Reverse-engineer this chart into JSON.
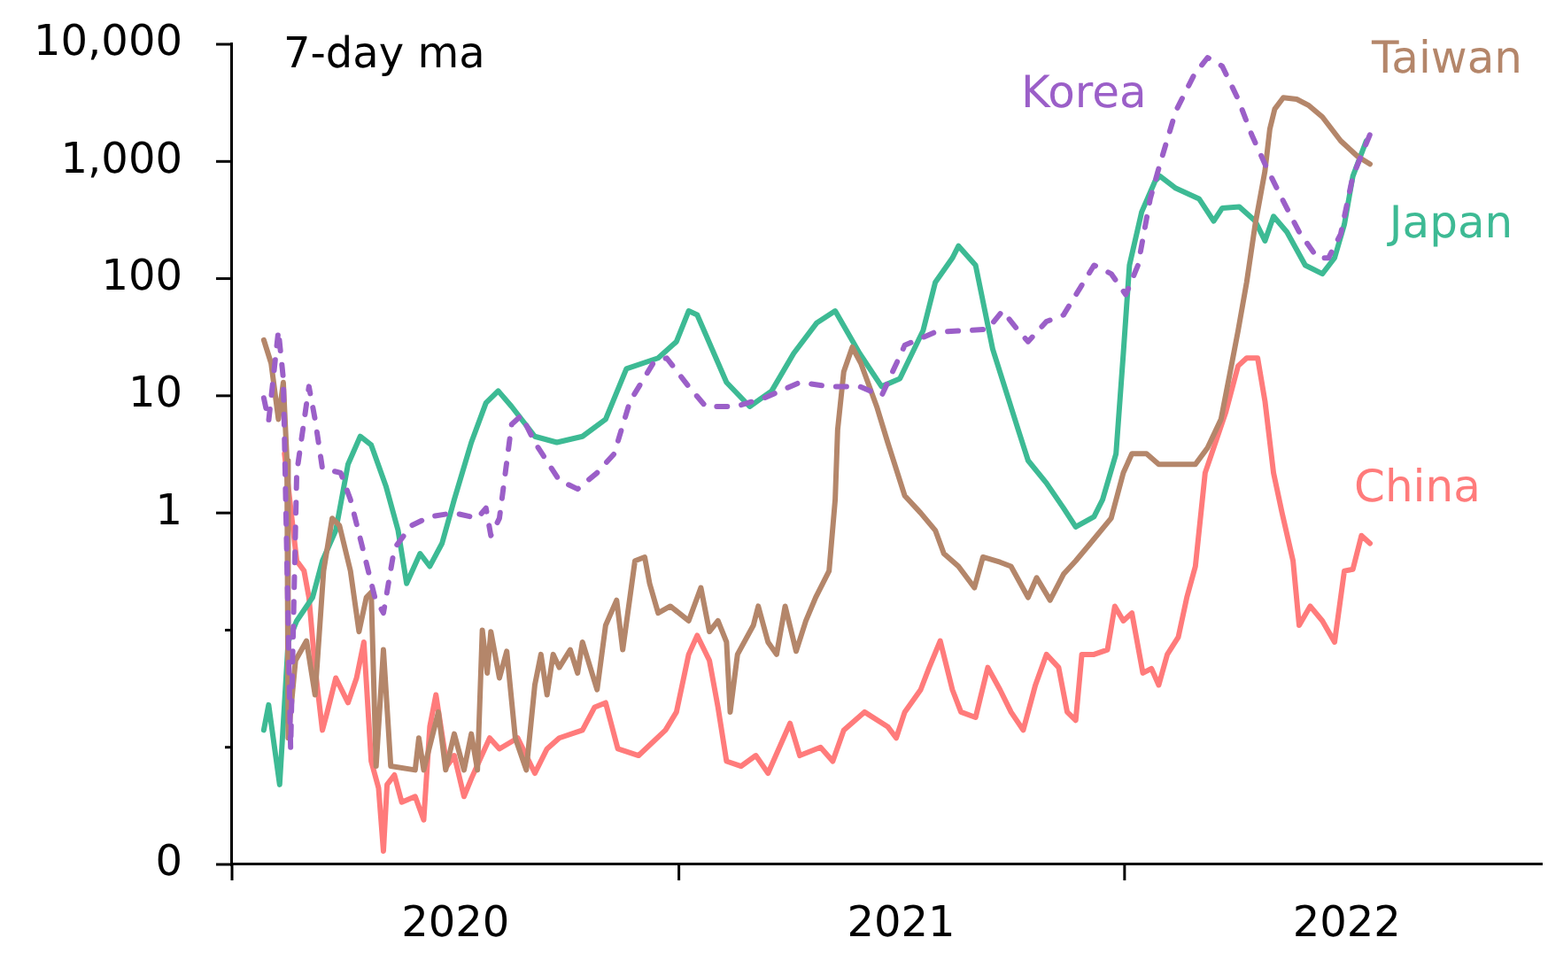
{
  "chart_data": {
    "type": "line",
    "log": true,
    "legend": false,
    "marker": "none",
    "line_style": "solid",
    "annotations": [
      "7-day ma"
    ],
    "xlim": [
      "2020-01-01",
      "2022-12-08"
    ],
    "xticks": [
      {
        "value": "2020-01-01",
        "label": null
      },
      {
        "value": "2020-07-02",
        "label": "2020"
      },
      {
        "value": "2021-01-01",
        "label": null
      },
      {
        "value": "2021-07-02",
        "label": "2021"
      },
      {
        "value": "2022-01-01",
        "label": null
      },
      {
        "value": "2022-07-02",
        "label": "2022"
      }
    ],
    "ylim": [
      0.001,
      10000
    ],
    "yticks": [
      {
        "value": 0.001,
        "label": "0"
      },
      {
        "value": 0.01,
        "label": null
      },
      {
        "value": 0.1,
        "label": null
      },
      1,
      10,
      100,
      {
        "value": 1000,
        "label": "1,000"
      },
      {
        "value": 10000,
        "label": "10,000"
      }
    ],
    "series": [
      {
        "name": "Korea",
        "color": "#9b5fc8",
        "line_style": "dashed",
        "x": [
          "2020-01-27",
          "2020-01-31",
          "2020-02-08",
          "2020-02-12",
          "2020-02-18",
          "2020-02-23",
          "2020-03-04",
          "2020-03-09",
          "2020-03-15",
          "2020-03-30",
          "2020-04-07",
          "2020-04-17",
          "2020-04-27",
          "2020-05-04",
          "2020-05-13",
          "2020-05-27",
          "2020-06-11",
          "2020-07-01",
          "2020-07-20",
          "2020-07-27",
          "2020-07-31",
          "2020-08-07",
          "2020-08-17",
          "2020-08-25",
          "2020-09-05",
          "2020-09-25",
          "2020-10-10",
          "2020-10-26",
          "2020-11-09",
          "2020-11-22",
          "2020-12-11",
          "2020-12-22",
          "2021-01-09",
          "2021-01-23",
          "2021-02-17",
          "2021-03-12",
          "2021-04-10",
          "2021-05-04",
          "2021-05-29",
          "2021-06-16",
          "2021-07-05",
          "2021-07-30",
          "2021-08-23",
          "2021-09-11",
          "2021-09-23",
          "2021-10-07",
          "2021-10-14",
          "2021-10-29",
          "2021-11-12",
          "2021-12-07",
          "2021-12-21",
          "2022-01-02",
          "2022-01-12",
          "2022-01-22",
          "2022-01-30",
          "2022-02-12",
          "2022-02-27",
          "2022-03-10",
          "2022-03-22",
          "2022-04-04",
          "2022-04-15",
          "2022-04-26",
          "2022-05-10",
          "2022-05-24",
          "2022-06-08",
          "2022-06-17",
          "2022-06-27",
          "2022-07-07",
          "2022-07-21"
        ],
        "values": [
          9.6,
          6.1,
          36,
          14,
          0.0097,
          2.2,
          12,
          6.3,
          2.4,
          2.2,
          1.3,
          0.5,
          0.19,
          0.14,
          0.5,
          0.78,
          0.93,
          1,
          0.9,
          1.1,
          0.64,
          0.9,
          5.7,
          6.8,
          4,
          1.9,
          1.6,
          2.2,
          3.2,
          9,
          19,
          21,
          12,
          8.1,
          8.1,
          9.6,
          13,
          12,
          12,
          10,
          27,
          35,
          36,
          37,
          53,
          35,
          29,
          43,
          49,
          130,
          110,
          73,
          130,
          480,
          950,
          2700,
          5500,
          7700,
          6500,
          3400,
          1700,
          950,
          480,
          250,
          150,
          150,
          240,
          750,
          1700
        ]
      },
      {
        "name": "Taiwan",
        "color": "#b4866a",
        "x": [
          "2020-01-27",
          "2020-02-02",
          "2020-02-08",
          "2020-02-12",
          "2020-02-15",
          "2020-02-16",
          "2020-02-22",
          "2020-03-02",
          "2020-03-09",
          "2020-03-16",
          "2020-03-23",
          "2020-03-29",
          "2020-04-07",
          "2020-04-14",
          "2020-04-20",
          "2020-04-24",
          "2020-04-28",
          "2020-05-04",
          "2020-05-10",
          "2020-05-30",
          "2020-06-02",
          "2020-06-06",
          "2020-06-18",
          "2020-06-24",
          "2020-07-01",
          "2020-07-09",
          "2020-07-15",
          "2020-07-20",
          "2020-07-24",
          "2020-07-28",
          "2020-07-31",
          "2020-08-07",
          "2020-08-13",
          "2020-08-20",
          "2020-08-29",
          "2020-09-05",
          "2020-09-10",
          "2020-09-15",
          "2020-09-20",
          "2020-09-25",
          "2020-10-04",
          "2020-10-10",
          "2020-10-14",
          "2020-10-26",
          "2020-11-02",
          "2020-11-11",
          "2020-11-16",
          "2020-11-26",
          "2020-12-04",
          "2020-12-08",
          "2020-12-15",
          "2020-12-25",
          "2021-01-09",
          "2021-01-19",
          "2021-01-26",
          "2021-02-02",
          "2021-02-09",
          "2021-02-12",
          "2021-02-18",
          "2021-03-03",
          "2021-03-07",
          "2021-03-15",
          "2021-03-22",
          "2021-03-29",
          "2021-04-07",
          "2021-04-15",
          "2021-04-23",
          "2021-05-04",
          "2021-05-09",
          "2021-05-11",
          "2021-05-16",
          "2021-05-23",
          "2021-05-30",
          "2021-06-12",
          "2021-06-21",
          "2021-07-05",
          "2021-07-18",
          "2021-07-30",
          "2021-08-06",
          "2021-08-18",
          "2021-08-31",
          "2021-09-07",
          "2021-09-21",
          "2021-09-30",
          "2021-10-14",
          "2021-10-21",
          "2021-11-01",
          "2021-11-12",
          "2021-11-22",
          "2021-12-04",
          "2021-12-21",
          "2021-12-31",
          "2022-01-07",
          "2022-01-19",
          "2022-01-29",
          "2022-02-17",
          "2022-02-28",
          "2022-03-10",
          "2022-03-21",
          "2022-03-28",
          "2022-04-04",
          "2022-04-11",
          "2022-04-18",
          "2022-04-26",
          "2022-04-30",
          "2022-05-04",
          "2022-05-11",
          "2022-05-22",
          "2022-06-01",
          "2022-06-12",
          "2022-06-27",
          "2022-07-11",
          "2022-07-21"
        ],
        "values": [
          30,
          19,
          6.3,
          13,
          2.8,
          0.012,
          0.055,
          0.081,
          0.028,
          0.32,
          0.9,
          0.78,
          0.32,
          0.097,
          0.19,
          0.21,
          0.0069,
          0.068,
          0.0069,
          0.0064,
          0.012,
          0.0064,
          0.02,
          0.0064,
          0.013,
          0.0064,
          0.013,
          0.0064,
          0.1,
          0.043,
          0.097,
          0.039,
          0.066,
          0.012,
          0.0064,
          0.034,
          0.062,
          0.028,
          0.062,
          0.048,
          0.068,
          0.043,
          0.079,
          0.031,
          0.11,
          0.18,
          0.068,
          0.39,
          0.42,
          0.25,
          0.14,
          0.16,
          0.12,
          0.23,
          0.097,
          0.12,
          0.079,
          0.02,
          0.062,
          0.11,
          0.16,
          0.079,
          0.062,
          0.16,
          0.066,
          0.12,
          0.19,
          0.32,
          1.3,
          5.1,
          16,
          26,
          19,
          8.1,
          4,
          1.4,
          1,
          0.71,
          0.45,
          0.35,
          0.23,
          0.42,
          0.38,
          0.35,
          0.19,
          0.28,
          0.18,
          0.3,
          0.39,
          0.55,
          0.9,
          2.2,
          3.2,
          3.2,
          2.6,
          2.6,
          2.6,
          3.6,
          6.3,
          15,
          36,
          93,
          290,
          830,
          1900,
          2800,
          3500,
          3400,
          3000,
          2400,
          1500,
          1100,
          950
        ]
      },
      {
        "name": "Japan",
        "color": "#3dba94",
        "x": [
          "2020-01-27",
          "2020-01-31",
          "2020-02-09",
          "2020-02-16",
          "2020-02-23",
          "2020-03-07",
          "2020-03-15",
          "2020-03-26",
          "2020-04-05",
          "2020-04-15",
          "2020-04-24",
          "2020-05-06",
          "2020-05-16",
          "2020-05-23",
          "2020-06-03",
          "2020-06-11",
          "2020-06-21",
          "2020-07-01",
          "2020-07-15",
          "2020-07-27",
          "2020-08-06",
          "2020-08-17",
          "2020-09-05",
          "2020-09-23",
          "2020-10-14",
          "2020-11-02",
          "2020-11-19",
          "2020-12-15",
          "2020-12-30",
          "2021-01-09",
          "2021-01-16",
          "2021-02-09",
          "2021-02-28",
          "2021-03-18",
          "2021-04-05",
          "2021-04-24",
          "2021-05-09",
          "2021-05-29",
          "2021-06-16",
          "2021-07-01",
          "2021-07-20",
          "2021-07-30",
          "2021-08-13",
          "2021-08-18",
          "2021-09-01",
          "2021-09-15",
          "2021-10-06",
          "2021-10-14",
          "2021-10-29",
          "2021-11-12",
          "2021-11-22",
          "2021-12-07",
          "2021-12-14",
          "2021-12-25",
          "2021-12-31",
          "2022-01-05",
          "2022-01-15",
          "2022-01-26",
          "2022-01-30",
          "2022-02-12",
          "2022-03-03",
          "2022-03-15",
          "2022-03-22",
          "2022-04-05",
          "2022-04-18",
          "2022-04-26",
          "2022-05-03",
          "2022-05-14",
          "2022-05-29",
          "2022-06-12",
          "2022-06-22",
          "2022-06-30",
          "2022-07-07",
          "2022-07-18"
        ],
        "values": [
          0.014,
          0.023,
          0.0048,
          0.079,
          0.12,
          0.19,
          0.39,
          0.71,
          2.6,
          4.5,
          3.8,
          1.7,
          0.71,
          0.25,
          0.45,
          0.35,
          0.55,
          1.3,
          4,
          8.7,
          11,
          8.1,
          4.5,
          4,
          4.5,
          6.3,
          17,
          21,
          29,
          53,
          49,
          13,
          8.1,
          11,
          23,
          42,
          53,
          23,
          12,
          14,
          36,
          93,
          150,
          190,
          130,
          25,
          5.1,
          2.8,
          1.8,
          1.1,
          0.76,
          0.93,
          1.3,
          3.2,
          23,
          130,
          370,
          680,
          750,
          590,
          480,
          310,
          400,
          410,
          310,
          210,
          340,
          250,
          130,
          110,
          150,
          290,
          750,
          1500
        ]
      },
      {
        "name": "China",
        "color": "#ff7b7b",
        "x": [
          "2020-02-13",
          "2020-02-19",
          "2020-02-23",
          "2020-02-29",
          "2020-03-04",
          "2020-03-09",
          "2020-03-15",
          "2020-03-19",
          "2020-03-26",
          "2020-04-05",
          "2020-04-12",
          "2020-04-18",
          "2020-04-24",
          "2020-04-30",
          "2020-05-04",
          "2020-05-07",
          "2020-05-13",
          "2020-05-19",
          "2020-05-30",
          "2020-06-06",
          "2020-06-11",
          "2020-06-16",
          "2020-06-25",
          "2020-07-01",
          "2020-07-09",
          "2020-07-15",
          "2020-07-30",
          "2020-08-07",
          "2020-08-22",
          "2020-09-05",
          "2020-09-15",
          "2020-09-25",
          "2020-10-14",
          "2020-10-24",
          "2020-11-02",
          "2020-11-12",
          "2020-11-29",
          "2020-12-21",
          "2020-12-30",
          "2021-01-09",
          "2021-01-16",
          "2021-01-26",
          "2021-02-02",
          "2021-02-09",
          "2021-02-21",
          "2021-03-05",
          "2021-03-15",
          "2021-04-02",
          "2021-04-10",
          "2021-04-27",
          "2021-05-07",
          "2021-05-16",
          "2021-06-02",
          "2021-06-21",
          "2021-06-28",
          "2021-07-05",
          "2021-07-18",
          "2021-07-25",
          "2021-08-03",
          "2021-08-13",
          "2021-08-20",
          "2021-09-01",
          "2021-09-11",
          "2021-09-21",
          "2021-09-30",
          "2021-10-10",
          "2021-10-20",
          "2021-10-29",
          "2021-11-08",
          "2021-11-15",
          "2021-11-22",
          "2021-11-27",
          "2021-12-07",
          "2021-12-18",
          "2021-12-24",
          "2021-12-31",
          "2022-01-07",
          "2022-01-16",
          "2022-01-23",
          "2022-01-29",
          "2022-02-05",
          "2022-02-14",
          "2022-02-21",
          "2022-02-28",
          "2022-03-08",
          "2022-03-15",
          "2022-03-25",
          "2022-04-04",
          "2022-04-11",
          "2022-04-20",
          "2022-04-26",
          "2022-05-03",
          "2022-05-10",
          "2022-05-19",
          "2022-05-24",
          "2022-06-02",
          "2022-06-12",
          "2022-06-22",
          "2022-06-30",
          "2022-07-07",
          "2022-07-14",
          "2022-07-21"
        ],
        "values": [
          3.2,
          0.9,
          0.39,
          0.32,
          0.19,
          0.048,
          0.014,
          0.02,
          0.039,
          0.024,
          0.039,
          0.079,
          0.0076,
          0.0045,
          0.0013,
          0.0048,
          0.0058,
          0.0034,
          0.0038,
          0.0024,
          0.015,
          0.028,
          0.0069,
          0.0085,
          0.0038,
          0.0054,
          0.012,
          0.0097,
          0.012,
          0.006,
          0.0097,
          0.012,
          0.014,
          0.022,
          0.024,
          0.0097,
          0.0085,
          0.014,
          0.02,
          0.062,
          0.09,
          0.055,
          0.022,
          0.0076,
          0.0069,
          0.0085,
          0.006,
          0.016,
          0.0085,
          0.01,
          0.0076,
          0.014,
          0.02,
          0.015,
          0.012,
          0.02,
          0.031,
          0.048,
          0.081,
          0.031,
          0.02,
          0.018,
          0.048,
          0.031,
          0.02,
          0.014,
          0.034,
          0.062,
          0.048,
          0.02,
          0.017,
          0.062,
          0.062,
          0.068,
          0.16,
          0.12,
          0.14,
          0.043,
          0.047,
          0.034,
          0.062,
          0.087,
          0.19,
          0.35,
          2.2,
          3.6,
          7.3,
          18,
          21,
          21,
          9,
          2.2,
          1,
          0.39,
          0.11,
          0.16,
          0.12,
          0.079,
          0.32,
          0.33,
          0.64,
          0.55
        ]
      }
    ]
  }
}
